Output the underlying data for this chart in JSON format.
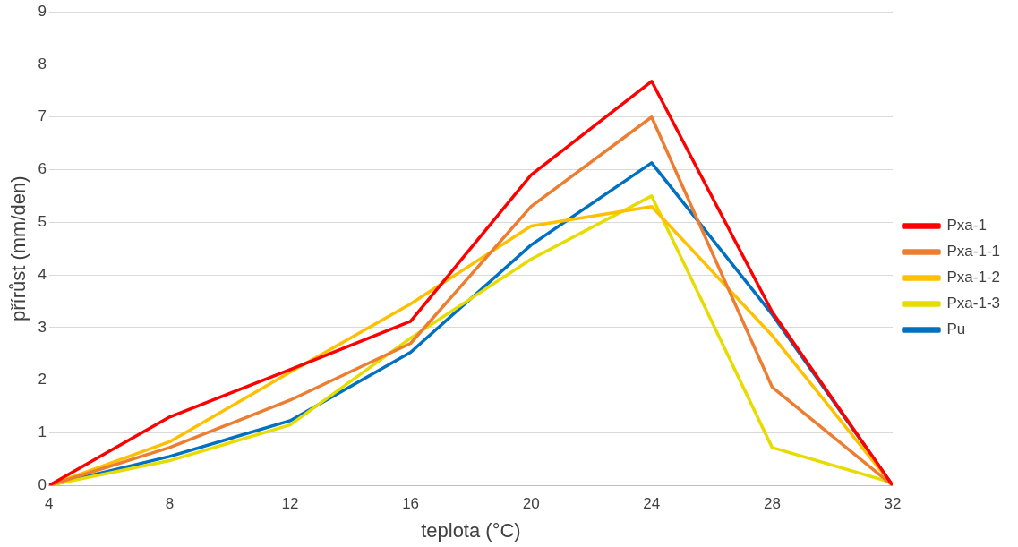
{
  "chart_data": {
    "type": "line",
    "xlabel": "teplota (°C)",
    "ylabel": "přírůst (mm/den)",
    "x": [
      4,
      8,
      12,
      16,
      20,
      24,
      28,
      32
    ],
    "xlim": [
      4,
      32
    ],
    "xticks": [
      4,
      8,
      12,
      16,
      20,
      24,
      28,
      32
    ],
    "ylim": [
      0,
      9
    ],
    "yticks": [
      0,
      1,
      2,
      3,
      4,
      5,
      6,
      7,
      8,
      9
    ],
    "grid": "y",
    "legend": "right",
    "marker": "none",
    "line_style": "solid",
    "series": [
      {
        "name": "Pxa-1",
        "color": "#ff0000",
        "values": [
          0,
          1.3,
          2.2,
          3.12,
          5.9,
          7.68,
          3.3,
          0
        ]
      },
      {
        "name": "Pxa-1-1",
        "color": "#ed7d31",
        "values": [
          0,
          0.72,
          1.62,
          2.7,
          5.3,
          7.0,
          1.87,
          0
        ]
      },
      {
        "name": "Pxa-1-2",
        "color": "#ffc000",
        "values": [
          0,
          0.83,
          2.15,
          3.45,
          4.93,
          5.3,
          2.85,
          0
        ]
      },
      {
        "name": "Pxa-1-3",
        "color": "#e6dc00",
        "values": [
          0,
          0.47,
          1.15,
          2.8,
          4.3,
          5.5,
          0.72,
          0.05
        ]
      },
      {
        "name": "Pu",
        "color": "#0070c0",
        "values": [
          0,
          0.55,
          1.23,
          2.53,
          4.57,
          6.13,
          3.25,
          0
        ]
      }
    ]
  }
}
